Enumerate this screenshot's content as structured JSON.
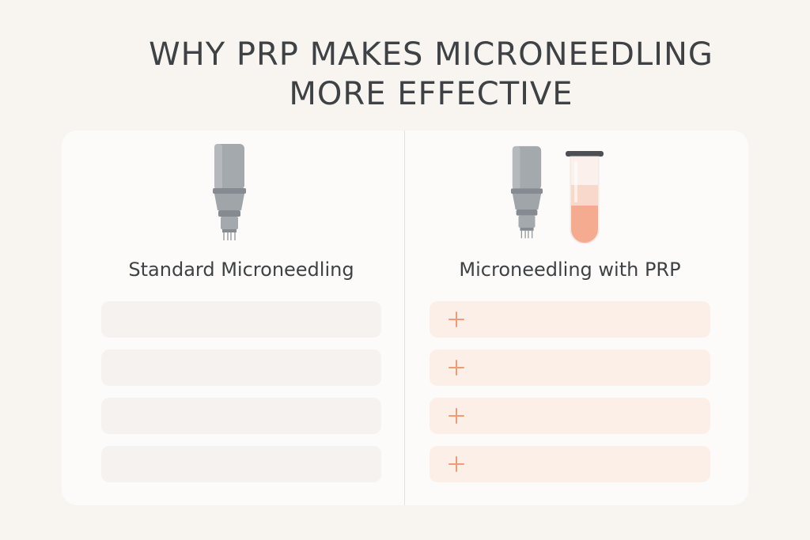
{
  "title": {
    "line1": "WHY PRP MAKES MICRONEEDLING",
    "line2": "MORE EFFECTIVE"
  },
  "left_panel": {
    "heading": "Standard Microneedling",
    "icon": "microneedling-pen-icon",
    "rows": [
      "",
      "",
      "",
      ""
    ]
  },
  "right_panel": {
    "heading": "Microneedling with PRP",
    "icons": [
      "microneedling-pen-icon",
      "test-tube-icon"
    ],
    "rows": [
      "",
      "",
      "",
      ""
    ],
    "row_icon": "plus-icon"
  },
  "colors": {
    "background": "#f8f5f1",
    "card": "#fdfbf9",
    "text": "#3e4245",
    "accent": "#ee9b78",
    "prp_fluid": "#f4ab90",
    "device_gray": "#9da2a8"
  }
}
